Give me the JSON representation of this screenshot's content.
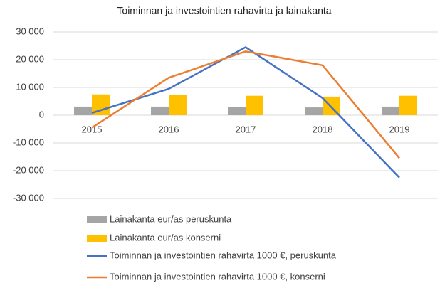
{
  "chart_data": {
    "type": "bar",
    "title": "Toiminnan ja investointien rahavirta ja lainakanta",
    "categories": [
      "2015",
      "2016",
      "2017",
      "2018",
      "2019"
    ],
    "series": [
      {
        "name": "Lainakanta eur/as peruskunta",
        "type": "bar",
        "color": "#a5a5a5",
        "values": [
          3100,
          3100,
          3000,
          2800,
          3100
        ]
      },
      {
        "name": "Lainakanta eur/as konserni",
        "type": "bar",
        "color": "#ffc000",
        "values": [
          7500,
          7200,
          7000,
          6700,
          7000
        ]
      },
      {
        "name": "Toiminnan ja investointien rahavirta 1000 €, peruskunta",
        "type": "line",
        "color": "#4472c4",
        "values": [
          800,
          9500,
          24500,
          6200,
          -22500
        ]
      },
      {
        "name": "Toiminnan ja investointien rahavirta 1000 €, konserni",
        "type": "line",
        "color": "#ed7d31",
        "values": [
          -4500,
          13500,
          23000,
          18000,
          -15500
        ]
      }
    ],
    "ylim": [
      -30000,
      30000
    ],
    "yticks": [
      {
        "value": 30000,
        "label": "30 000"
      },
      {
        "value": 20000,
        "label": "20 000"
      },
      {
        "value": 10000,
        "label": "10 000"
      },
      0,
      {
        "value": -10000,
        "label": "-10 000"
      },
      {
        "value": -20000,
        "label": "-20 000"
      },
      {
        "value": -30000,
        "label": "-30 000"
      }
    ],
    "grid": true
  }
}
